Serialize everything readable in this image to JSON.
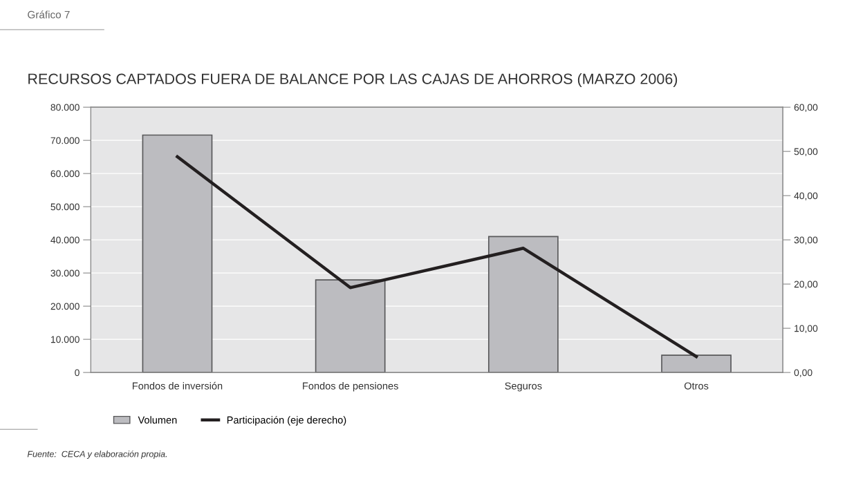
{
  "chart_data": {
    "type": "bar",
    "title": "RECURSOS CAPTADOS FUERA DE BALANCE POR LAS CAJAS DE AHORROS (MARZO 2006)",
    "annotations": [
      "Gráfico 7",
      "Fuente:  CECA y elaboración propia."
    ],
    "categories": [
      "Fondos de inversión",
      "Fondos de pensiones",
      "Seguros",
      "Otros"
    ],
    "series": [
      {
        "name": "Volumen",
        "color": "#bcbcc0",
        "values": [
          71600,
          27900,
          41000,
          5200
        ]
      },
      {
        "name": "Participación (eje derecho)",
        "type": "line",
        "axis": "y2",
        "color": "#231f20",
        "values": [
          48.8,
          19.2,
          28.1,
          3.6
        ]
      }
    ],
    "ylim": [
      0,
      80000
    ],
    "yticks": [
      {
        "value": 0,
        "label": "0"
      },
      {
        "value": 10000,
        "label": "10.000"
      },
      {
        "value": 20000,
        "label": "20.000"
      },
      {
        "value": 30000,
        "label": "30.000"
      },
      {
        "value": 40000,
        "label": "40.000"
      },
      {
        "value": 50000,
        "label": "50.000"
      },
      {
        "value": 60000,
        "label": "60.000"
      },
      {
        "value": 70000,
        "label": "70.000"
      },
      {
        "value": 80000,
        "label": "80.000"
      }
    ],
    "y2lim": [
      0,
      60
    ],
    "y2ticks": [
      {
        "value": 0,
        "label": "0,00"
      },
      {
        "value": 10,
        "label": "10,00"
      },
      {
        "value": 20,
        "label": "20,00"
      },
      {
        "value": 30,
        "label": "30,00"
      },
      {
        "value": 40,
        "label": "40,00"
      },
      {
        "value": 50,
        "label": "50,00"
      },
      {
        "value": 60,
        "label": "60,00"
      }
    ],
    "grid": true,
    "legend": "bottom left",
    "marker": "none",
    "line_style": "solid"
  }
}
